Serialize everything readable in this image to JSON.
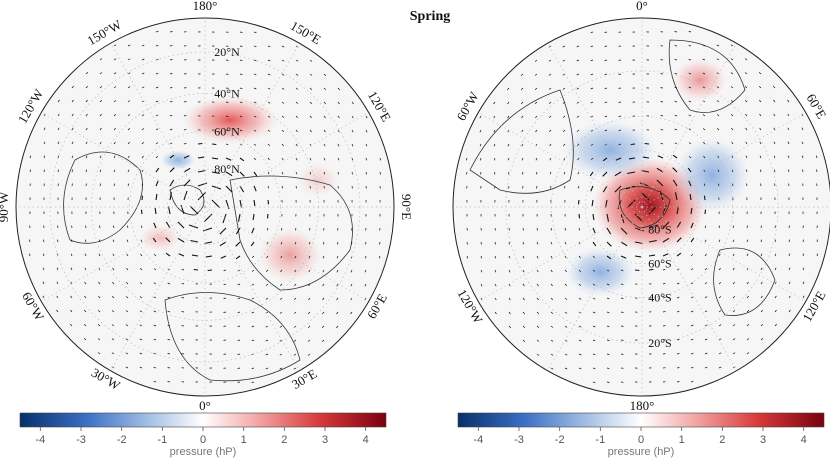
{
  "title": "Spring",
  "colorbar": {
    "label": "pressure (hP)",
    "min": -4.5,
    "max": 4.5,
    "ticks": [
      "-4",
      "-3",
      "-2",
      "-1",
      "0",
      "1",
      "2",
      "3",
      "4"
    ],
    "tick_values": [
      -4,
      -3,
      -2,
      -1,
      0,
      1,
      2,
      3,
      4
    ],
    "colors": [
      "#08306b",
      "#3a6fc4",
      "#a9c3e6",
      "#ffffff",
      "#f4aaaa",
      "#d73a3a",
      "#7a0010"
    ]
  },
  "maps": [
    {
      "name": "north-polar-stereographic",
      "pole": "N",
      "lon_labels": [
        "180°",
        "150°E",
        "120°E",
        "90°E",
        "60°E",
        "30°E",
        "0°",
        "30°W",
        "60°W",
        "90°W",
        "120°W",
        "150°W"
      ],
      "lat_labels": [
        "20°N",
        "40°N",
        "60°N",
        "80°N"
      ],
      "anomalies": [
        {
          "region": "north-pacific",
          "value": 1.6
        },
        {
          "region": "aleutian-west",
          "value": -0.8
        },
        {
          "region": "eastern-asia",
          "value": 1.2
        },
        {
          "region": "north-atlantic",
          "value": 0.6
        },
        {
          "region": "arctic",
          "value": 0.5
        }
      ]
    },
    {
      "name": "south-polar-stereographic",
      "pole": "S",
      "lon_labels": [
        "0°",
        "60°E",
        "120°E",
        "180°",
        "120°W",
        "60°W"
      ],
      "lat_labels": [
        "20°S",
        "40°S",
        "60°S",
        "80°S"
      ],
      "anomalies": [
        {
          "region": "antarctic",
          "value": 4.0
        },
        {
          "region": "south-atlantic",
          "value": -1.8
        },
        {
          "region": "south-indian",
          "value": -1.6
        },
        {
          "region": "south-pacific",
          "value": -1.7
        },
        {
          "region": "north-africa",
          "value": 1.4
        }
      ]
    }
  ]
}
